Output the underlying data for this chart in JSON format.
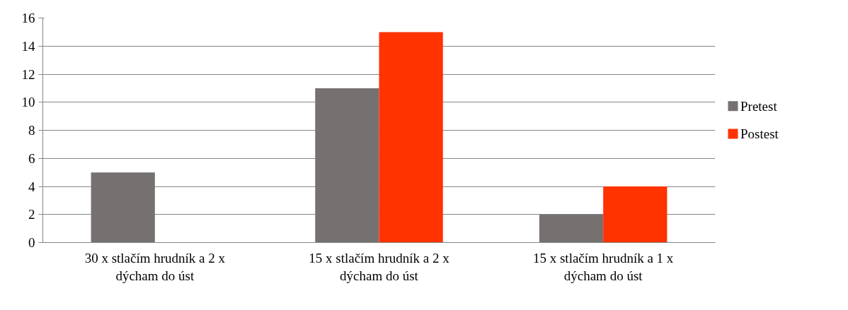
{
  "chart_data": {
    "type": "bar",
    "categories": [
      "30 x stlačím hrudník a 2 x dýcham do úst",
      "15 x stlačím hrudník a 2 x dýcham do úst",
      "15 x stlačím hrudník a 1 x dýcham do úst"
    ],
    "series": [
      {
        "name": "Pretest",
        "color": "#767171",
        "values": [
          5,
          11,
          2
        ]
      },
      {
        "name": "Postest",
        "color": "#ff3300",
        "values": [
          0,
          15,
          4
        ]
      }
    ],
    "ylim": [
      0,
      16
    ],
    "yticks": [
      0,
      2,
      4,
      6,
      8,
      10,
      12,
      14,
      16
    ],
    "grid": "y",
    "legend": "right"
  }
}
